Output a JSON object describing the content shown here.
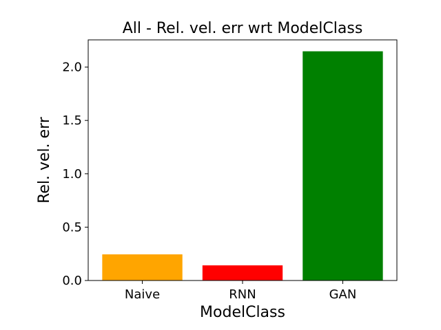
{
  "chart_data": {
    "type": "bar",
    "title": "All - Rel. vel. err wrt ModelClass",
    "xlabel": "ModelClass",
    "ylabel": "Rel. vel. err",
    "categories": [
      "Naive",
      "RNN",
      "GAN"
    ],
    "values": [
      0.245,
      0.142,
      2.148
    ],
    "colors": [
      "#ffa500",
      "#ff0000",
      "#008000"
    ],
    "ylim": [
      0,
      2.255
    ],
    "yticks": [
      0.0,
      0.5,
      1.0,
      1.5,
      2.0
    ],
    "ytick_labels": [
      "0.0",
      "0.5",
      "1.0",
      "1.5",
      "2.0"
    ],
    "grid": false,
    "legend": "none"
  }
}
